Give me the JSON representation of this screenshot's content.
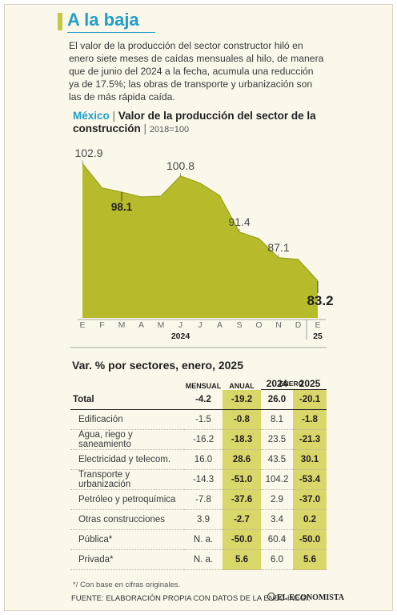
{
  "header": {
    "title": "A la baja",
    "intro": "El valor de la producción del sector constructor hiló en enero siete meses de caídas mensuales al hilo, de manera que de junio del 2024 a la fecha, acumula una reducción ya de 17.5%; las obras de transporte y urbanización son las de más rápida caída."
  },
  "colors": {
    "accent": "#1fa0c8",
    "area": "#b5bb2b",
    "highlight": "#d9d66a",
    "background": "#fbf7ea"
  },
  "chart_data": {
    "type": "area",
    "title_country": "México",
    "title_sep": "|",
    "title": "Valor de la producción del sector de la construcción",
    "base_sep": "|",
    "base": "2018=100",
    "x": [
      "E",
      "F",
      "M",
      "A",
      "M",
      "J",
      "J",
      "A",
      "S",
      "O",
      "N",
      "D",
      "E"
    ],
    "values": [
      102.9,
      98.8,
      98.1,
      97.3,
      97.4,
      100.8,
      99.6,
      97.5,
      91.4,
      90.3,
      87.1,
      86.8,
      83.2
    ],
    "year_labels": [
      {
        "label": "2024",
        "index": 5
      },
      {
        "label": "25",
        "index": 12
      }
    ],
    "labels": [
      {
        "index": 0,
        "text": "102.9",
        "bold": false
      },
      {
        "index": 2,
        "text": "98.1",
        "bold": true
      },
      {
        "index": 5,
        "text": "100.8",
        "bold": false
      },
      {
        "index": 8,
        "text": "91.4",
        "bold": false
      },
      {
        "index": 10,
        "text": "87.1",
        "bold": false
      },
      {
        "index": 12,
        "text": "83.2",
        "bold": true
      }
    ],
    "ylim": [
      77,
      104
    ]
  },
  "sectors": {
    "title": "Var. % por sectores, enero, 2025",
    "group_label": "ENERO",
    "columns": [
      "MENSUAL",
      "ANUAL",
      "2024",
      "2025"
    ],
    "total": {
      "label": "Total",
      "mensual": "-4.2",
      "anual": "-19.2",
      "y2024": "26.0",
      "y2025": "-20.1"
    },
    "rows": [
      {
        "label": "Edificación",
        "mensual": "-1.5",
        "anual": "-0.8",
        "y2024": "8.1",
        "y2025": "-1.8"
      },
      {
        "label": "Agua, riego y saneamiento",
        "mensual": "-16.2",
        "anual": "-18.3",
        "y2024": "23.5",
        "y2025": "-21.3"
      },
      {
        "label": "Electricidad y telecom.",
        "mensual": "16.0",
        "anual": "28.6",
        "y2024": "43.5",
        "y2025": "30.1"
      },
      {
        "label": "Transporte y urbanización",
        "mensual": "-14.3",
        "anual": "-51.0",
        "y2024": "104.2",
        "y2025": "-53.4"
      },
      {
        "label": "Petróleo y petroquímica",
        "mensual": "-7.8",
        "anual": "-37.6",
        "y2024": "2.9",
        "y2025": "-37.0"
      },
      {
        "label": "Otras construcciones",
        "mensual": "3.9",
        "anual": "-2.7",
        "y2024": "3.4",
        "y2025": "0.2"
      },
      {
        "label": "Pública*",
        "mensual": "N. a.",
        "anual": "-50.0",
        "y2024": "60.4",
        "y2025": "-50.0"
      },
      {
        "label": "Privada*",
        "mensual": "N. a.",
        "anual": "5.6",
        "y2024": "6.0",
        "y2025": "5.6"
      }
    ]
  },
  "footer": {
    "note": "*/ Con base en cifras originales.",
    "source": "FUENTE: ELABORACIÓN PROPIA CON DATOS DE LA ENEC-INEGI.",
    "logo": "EL ECONOMISTA"
  }
}
